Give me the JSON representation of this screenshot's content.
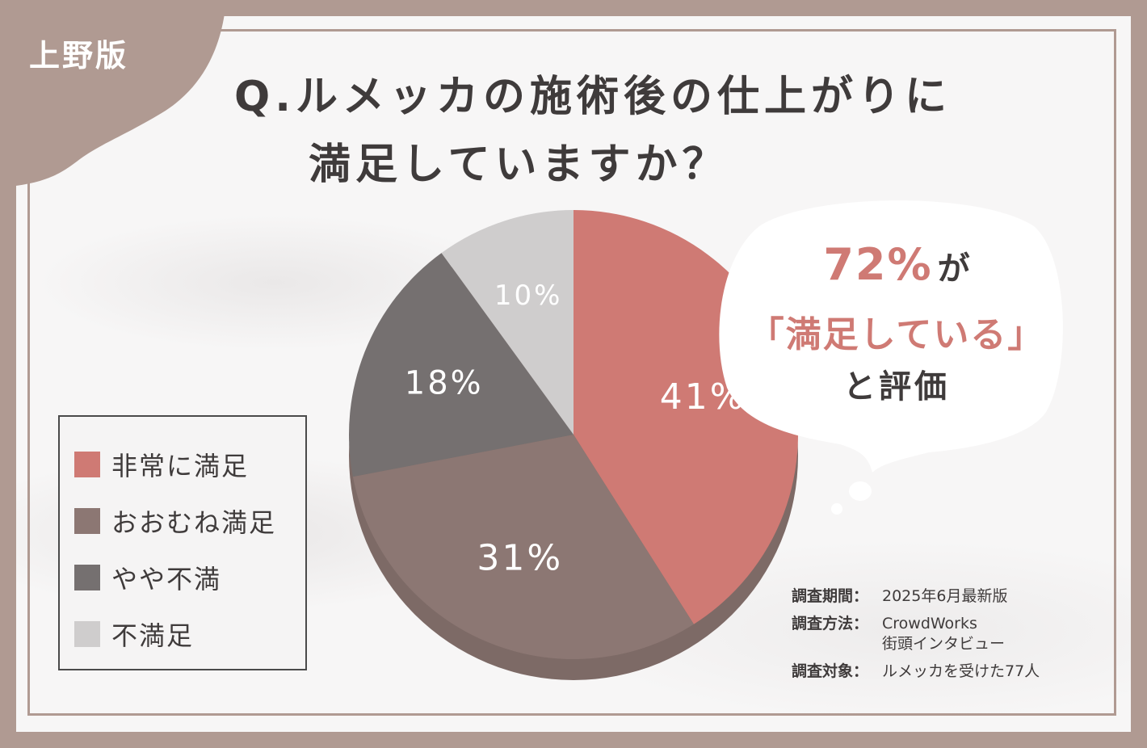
{
  "tag": "上野版",
  "title": {
    "line1": "Q.ルメッカの施術後の仕上がりに",
    "line2": "満足していますか？"
  },
  "colors": {
    "background": "#b09a92",
    "card": "#f7f6f6",
    "very_satisfied": "#cf7a74",
    "fairly_satisfied": "#8c7773",
    "somewhat_dissatisfied": "#757070",
    "dissatisfied": "#cfcdcd",
    "side": "#7d6a66"
  },
  "chart_data": {
    "type": "pie",
    "categories": [
      "非常に満足",
      "おおむね満足",
      "やや不満",
      "不満足"
    ],
    "values": [
      41,
      31,
      18,
      10
    ],
    "labels": [
      "41%",
      "31%",
      "18%",
      "10%"
    ],
    "legend_position": "left"
  },
  "callout": {
    "percent": "72%",
    "particle": "が",
    "quote": "「満足している」",
    "tail": "と評価"
  },
  "survey": {
    "period_label": "調査期間：",
    "period_value": "2025年6月最新版",
    "method_label": "調査方法：",
    "method_value1": "CrowdWorks",
    "method_value2": "街頭インタビュー",
    "target_label": "調査対象：",
    "target_value": "ルメッカを受けた77人"
  }
}
